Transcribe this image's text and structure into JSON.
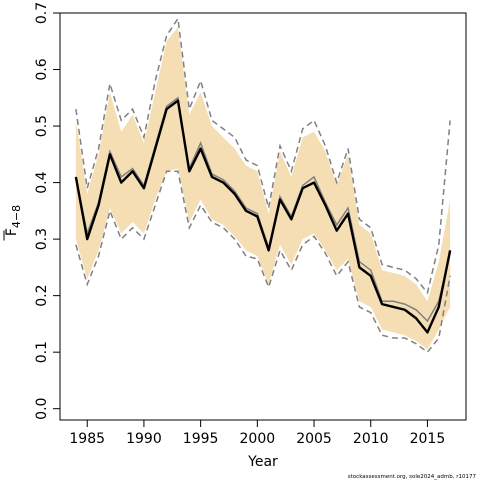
{
  "chart_data": {
    "type": "line",
    "xlabel": "Year",
    "ylabel": "F",
    "ylabel_subscript": "4−8",
    "credit": "stockassessment.org, sole2024_admb, r10177",
    "xlim": [
      1982.6,
      2018.4
    ],
    "ylim": [
      -0.02,
      0.7
    ],
    "xticks": [
      1985,
      1990,
      1995,
      2000,
      2005,
      2010,
      2015
    ],
    "yticks": [
      0.0,
      0.1,
      0.2,
      0.3,
      0.4,
      0.5,
      0.6,
      0.7
    ],
    "band_color": "#f5deb3",
    "x": [
      1984,
      1985,
      1986,
      1987,
      1988,
      1989,
      1990,
      1991,
      1992,
      1993,
      1994,
      1995,
      1996,
      1997,
      1998,
      1999,
      2000,
      2001,
      2002,
      2003,
      2004,
      2005,
      2006,
      2007,
      2008,
      2009,
      2010,
      2011,
      2012,
      2013,
      2014,
      2015,
      2016,
      2017
    ],
    "series": [
      {
        "color": "#000000",
        "values": [
          0.41,
          0.3,
          0.36,
          0.45,
          0.4,
          0.42,
          0.39,
          0.46,
          0.53,
          0.545,
          0.42,
          0.46,
          0.41,
          0.4,
          0.38,
          0.35,
          0.34,
          0.28,
          0.37,
          0.335,
          0.39,
          0.4,
          0.36,
          0.315,
          0.345,
          0.25,
          0.235,
          0.185,
          0.18,
          0.175,
          0.16,
          0.135,
          0.18,
          0.28
        ]
      },
      {
        "color": "#808080",
        "values": [
          0.41,
          0.31,
          0.365,
          0.455,
          0.41,
          0.425,
          0.395,
          0.465,
          0.535,
          0.55,
          0.425,
          0.47,
          0.415,
          0.405,
          0.385,
          0.355,
          0.345,
          0.285,
          0.375,
          0.34,
          0.395,
          0.41,
          0.365,
          0.325,
          0.355,
          0.26,
          0.245,
          0.19,
          0.19,
          0.185,
          0.175,
          0.155,
          0.19,
          0.275
        ]
      },
      {
        "color": "#808080",
        "values": [
          0.53,
          0.39,
          0.46,
          0.575,
          0.51,
          0.53,
          0.48,
          0.58,
          0.66,
          0.69,
          0.53,
          0.58,
          0.51,
          0.495,
          0.48,
          0.44,
          0.43,
          0.355,
          0.465,
          0.42,
          0.495,
          0.51,
          0.465,
          0.4,
          0.46,
          0.335,
          0.32,
          0.255,
          0.25,
          0.245,
          0.23,
          0.205,
          0.29,
          0.51
        ]
      },
      {
        "color": "#808080",
        "values": [
          0.29,
          0.22,
          0.27,
          0.35,
          0.3,
          0.32,
          0.3,
          0.36,
          0.42,
          0.42,
          0.32,
          0.36,
          0.33,
          0.32,
          0.3,
          0.27,
          0.265,
          0.215,
          0.28,
          0.245,
          0.29,
          0.305,
          0.275,
          0.235,
          0.26,
          0.18,
          0.17,
          0.13,
          0.125,
          0.125,
          0.115,
          0.1,
          0.125,
          0.235
        ]
      }
    ],
    "band_upper": [
      0.51,
      0.38,
      0.45,
      0.56,
      0.49,
      0.52,
      0.47,
      0.56,
      0.65,
      0.675,
      0.52,
      0.56,
      0.5,
      0.48,
      0.46,
      0.43,
      0.42,
      0.345,
      0.455,
      0.41,
      0.48,
      0.49,
      0.455,
      0.395,
      0.45,
      0.325,
      0.31,
      0.245,
      0.24,
      0.235,
      0.22,
      0.19,
      0.26,
      0.37
    ],
    "band_lower": [
      0.3,
      0.23,
      0.28,
      0.355,
      0.31,
      0.33,
      0.31,
      0.37,
      0.42,
      0.425,
      0.33,
      0.37,
      0.335,
      0.325,
      0.305,
      0.28,
      0.27,
      0.22,
      0.29,
      0.255,
      0.3,
      0.31,
      0.28,
      0.245,
      0.265,
      0.19,
      0.18,
      0.14,
      0.135,
      0.13,
      0.12,
      0.105,
      0.14,
      0.18
    ]
  }
}
